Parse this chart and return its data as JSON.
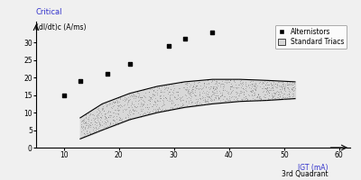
{
  "title": "Critical",
  "ylabel": "(dI/dt)c (A/ms)",
  "xlabel_line1": "IGT (mA)",
  "xlabel_line2": "3rd Quadrant",
  "xlim": [
    5,
    62
  ],
  "ylim": [
    0,
    36
  ],
  "xticks": [
    10,
    20,
    30,
    40,
    50,
    60
  ],
  "yticks": [
    0,
    5,
    10,
    15,
    20,
    25,
    30
  ],
  "alternistor_x": [
    10,
    13,
    18,
    22,
    29,
    32,
    37
  ],
  "alternistor_y": [
    15,
    19,
    21,
    24,
    29,
    31,
    33
  ],
  "band_x": [
    13,
    17,
    22,
    27,
    32,
    37,
    42,
    47,
    52
  ],
  "band_upper": [
    8.5,
    12.5,
    15.5,
    17.5,
    18.8,
    19.5,
    19.5,
    19.2,
    18.8
  ],
  "band_lower": [
    2.5,
    5.0,
    8.0,
    10.0,
    11.5,
    12.5,
    13.2,
    13.5,
    14.0
  ],
  "scatter_color": "#000000",
  "band_fill_color": "#d8d8d8",
  "band_edge_color": "#000000",
  "bg_color": "#f0f0f0",
  "legend_alternistor": "Alternistors",
  "legend_standard": "Standard Triacs",
  "title_fontsize": 6,
  "axis_fontsize": 5.5,
  "tick_fontsize": 5.5,
  "legend_fontsize": 5.5
}
